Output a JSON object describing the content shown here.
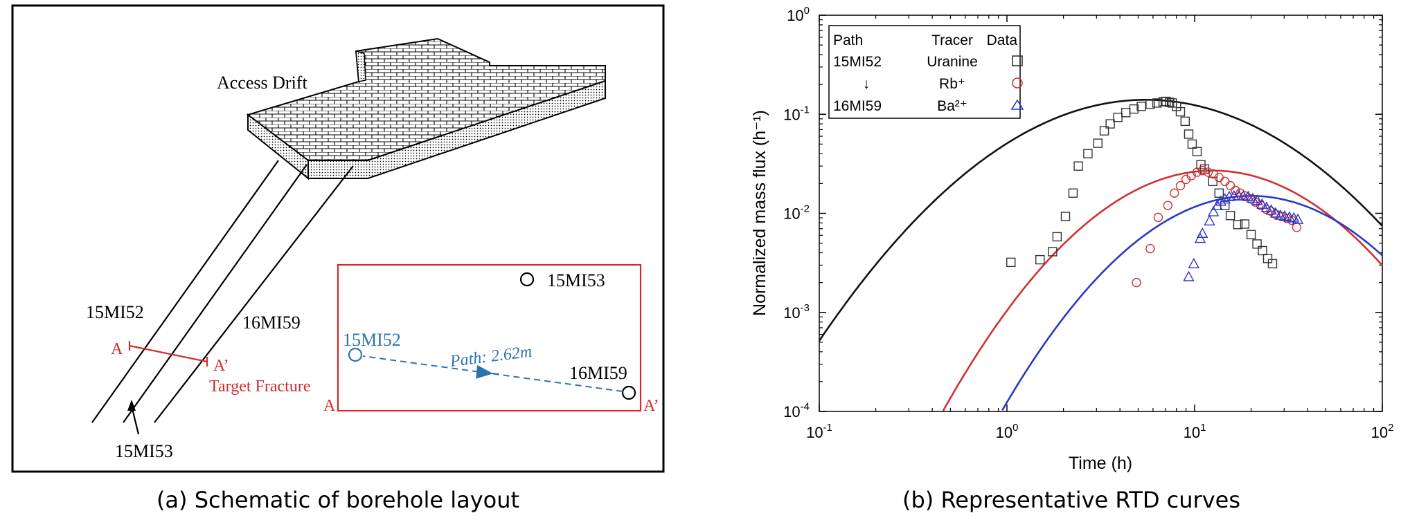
{
  "figure_a": {
    "caption": "(a) Schematic of borehole layout",
    "access_drift_label": "Access Drift",
    "boreholes": {
      "b1": "15MI52",
      "b2": "16MI59",
      "b3": "15MI53"
    },
    "section_marks": {
      "a": "A",
      "a_prime": "A’"
    },
    "target_fracture_label": "Target Fracture",
    "inset": {
      "hole_top": "15MI53",
      "hole_left": "15MI52",
      "hole_right": "16MI59",
      "path_label": "Path: 2.62m",
      "corner_left": "A",
      "corner_right": "A’"
    },
    "colors": {
      "section": "#d42a2a",
      "path": "#2b73b0",
      "lines": "#000000"
    }
  },
  "figure_b": {
    "caption": "(b) Representative RTD curves",
    "chart_data": {
      "type": "scatter",
      "xlabel": "Time (h)",
      "ylabel": "Normalized mass flux (h⁻¹)",
      "xscale": "log",
      "yscale": "log",
      "xlim": [
        0.1,
        100
      ],
      "ylim": [
        0.0001,
        1
      ],
      "x_ticks": [
        {
          "value": 0.1,
          "base": "10",
          "exp": "-1"
        },
        {
          "value": 1,
          "base": "10",
          "exp": "0"
        },
        {
          "value": 10,
          "base": "10",
          "exp": "1"
        },
        {
          "value": 100,
          "base": "10",
          "exp": "2"
        }
      ],
      "y_ticks": [
        {
          "value": 0.0001,
          "base": "10",
          "exp": "-4"
        },
        {
          "value": 0.001,
          "base": "10",
          "exp": "-3"
        },
        {
          "value": 0.01,
          "base": "10",
          "exp": "-2"
        },
        {
          "value": 0.1,
          "base": "10",
          "exp": "-1"
        },
        {
          "value": 1,
          "base": "10",
          "exp": "0"
        }
      ],
      "legend": {
        "placement": "top-left",
        "headers": [
          "Path",
          "Tracer",
          "Data"
        ],
        "path_from": "15MI52",
        "arrow": "↓",
        "path_to": "16MI59",
        "tracers": [
          "Uranine",
          "Rb⁺",
          "Ba²⁺"
        ]
      },
      "series": [
        {
          "tracer": "Uranine",
          "marker": "square",
          "color": "#333333",
          "fit": {
            "peak_x": 5.5,
            "peak_y": 0.14,
            "sigma": 0.52
          },
          "points": [
            [
              1.05,
              0.0032
            ],
            [
              1.5,
              0.0034
            ],
            [
              1.75,
              0.0041
            ],
            [
              1.85,
              0.0058
            ],
            [
              2.05,
              0.0093
            ],
            [
              2.25,
              0.016
            ],
            [
              2.4,
              0.03
            ],
            [
              2.7,
              0.04
            ],
            [
              3.05,
              0.051
            ],
            [
              3.3,
              0.068
            ],
            [
              3.55,
              0.08
            ],
            [
              3.9,
              0.093
            ],
            [
              4.3,
              0.104
            ],
            [
              4.75,
              0.113
            ],
            [
              5.2,
              0.12
            ],
            [
              5.8,
              0.126
            ],
            [
              6.3,
              0.13
            ],
            [
              6.8,
              0.134
            ],
            [
              7.05,
              0.135
            ],
            [
              7.35,
              0.132
            ],
            [
              7.6,
              0.13
            ],
            [
              8.0,
              0.12
            ],
            [
              8.4,
              0.106
            ],
            [
              8.9,
              0.085
            ],
            [
              9.3,
              0.063
            ],
            [
              9.7,
              0.05
            ],
            [
              10.3,
              0.042
            ],
            [
              10.8,
              0.031
            ],
            [
              11.3,
              0.028
            ],
            [
              12.5,
              0.021
            ],
            [
              13.5,
              0.016
            ],
            [
              14.5,
              0.012
            ],
            [
              15.5,
              0.0095
            ],
            [
              17.0,
              0.0077
            ],
            [
              18.5,
              0.0078
            ],
            [
              20.0,
              0.0061
            ],
            [
              21.5,
              0.0049
            ],
            [
              23.0,
              0.0042
            ],
            [
              24.5,
              0.0035
            ],
            [
              26.0,
              0.0031
            ]
          ]
        },
        {
          "tracer": "Rb⁺",
          "marker": "circle",
          "color": "#d03030",
          "fit": {
            "peak_x": 12.5,
            "peak_y": 0.027,
            "sigma": 0.43
          },
          "points": [
            [
              4.9,
              0.002
            ],
            [
              5.8,
              0.0044
            ],
            [
              6.4,
              0.0091
            ],
            [
              7.2,
              0.012
            ],
            [
              7.8,
              0.016
            ],
            [
              8.4,
              0.019
            ],
            [
              9.0,
              0.022
            ],
            [
              9.6,
              0.024
            ],
            [
              10.3,
              0.026
            ],
            [
              11.0,
              0.027
            ],
            [
              11.8,
              0.026
            ],
            [
              12.6,
              0.025
            ],
            [
              13.5,
              0.023
            ],
            [
              14.5,
              0.021
            ],
            [
              15.5,
              0.019
            ],
            [
              16.5,
              0.017
            ],
            [
              17.5,
              0.016
            ],
            [
              18.5,
              0.015
            ],
            [
              19.8,
              0.014
            ],
            [
              21.0,
              0.013
            ],
            [
              22.5,
              0.012
            ],
            [
              24.0,
              0.011
            ],
            [
              25.5,
              0.0105
            ],
            [
              27.0,
              0.0098
            ],
            [
              29.0,
              0.0093
            ],
            [
              31.0,
              0.0089
            ],
            [
              33.0,
              0.0085
            ],
            [
              35.0,
              0.0072
            ]
          ]
        },
        {
          "tracer": "Ba²⁺",
          "marker": "triangle",
          "color": "#2a36c8",
          "fit": {
            "peak_x": 20.0,
            "peak_y": 0.015,
            "sigma": 0.42
          },
          "points": [
            [
              9.3,
              0.0023
            ],
            [
              9.9,
              0.0031
            ],
            [
              10.7,
              0.0056
            ],
            [
              11.0,
              0.0063
            ],
            [
              12.0,
              0.0084
            ],
            [
              12.6,
              0.0104
            ],
            [
              13.2,
              0.012
            ],
            [
              13.8,
              0.0133
            ],
            [
              14.5,
              0.014
            ],
            [
              15.3,
              0.0148
            ],
            [
              16.2,
              0.015
            ],
            [
              17.2,
              0.0151
            ],
            [
              18.2,
              0.015
            ],
            [
              19.3,
              0.0148
            ],
            [
              20.4,
              0.0141
            ],
            [
              21.6,
              0.0135
            ],
            [
              22.9,
              0.0124
            ],
            [
              24.2,
              0.0115
            ],
            [
              25.6,
              0.0108
            ],
            [
              27.0,
              0.0101
            ],
            [
              28.6,
              0.0096
            ],
            [
              30.2,
              0.0094
            ],
            [
              32.0,
              0.0092
            ],
            [
              33.8,
              0.009
            ],
            [
              35.5,
              0.0087
            ]
          ]
        }
      ]
    }
  }
}
